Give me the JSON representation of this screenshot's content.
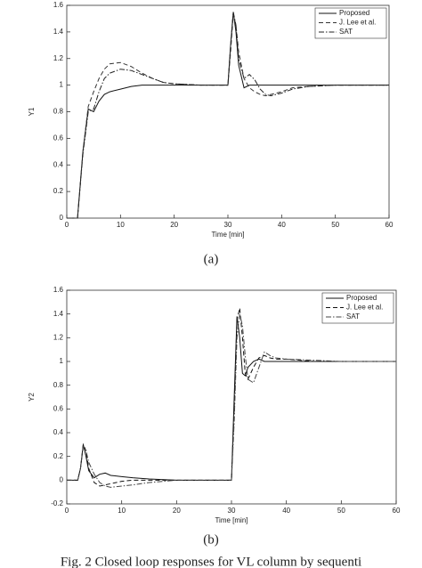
{
  "chart_data": [
    {
      "type": "line",
      "y_label": "Y1",
      "x_label": "Time [min]",
      "xlim": [
        0,
        60
      ],
      "xticks": [
        0,
        10,
        20,
        30,
        40,
        50,
        60
      ],
      "ylim": [
        0,
        1.6
      ],
      "yticks": [
        0,
        0.2,
        0.4,
        0.6,
        0.8,
        1,
        1.2,
        1.4,
        1.6
      ],
      "legend": "upper right",
      "x": [
        0,
        2,
        3,
        4,
        5,
        6,
        7,
        8,
        10,
        12,
        14,
        16,
        18,
        20,
        25,
        30,
        30.5,
        31,
        31.5,
        32,
        33,
        34,
        35,
        36,
        37,
        38,
        40,
        42,
        45,
        50,
        55,
        60
      ],
      "series": [
        {
          "name": "Proposed",
          "color": "#111111",
          "dash": "none",
          "values": [
            0,
            0,
            0.5,
            0.82,
            0.8,
            0.88,
            0.93,
            0.95,
            0.97,
            0.99,
            1.0,
            1.0,
            1.0,
            1.0,
            1.0,
            1.0,
            1.3,
            1.55,
            1.4,
            1.15,
            0.98,
            1.0,
            1.0,
            1.0,
            1.0,
            1.0,
            1.0,
            1.0,
            1.0,
            1.0,
            1.0,
            1.0
          ]
        },
        {
          "name": "J. Lee et al.",
          "color": "#333333",
          "dash": "5,3",
          "values": [
            0,
            0,
            0.5,
            0.84,
            0.95,
            1.05,
            1.12,
            1.16,
            1.17,
            1.14,
            1.09,
            1.05,
            1.02,
            1.01,
            1.0,
            1.0,
            1.25,
            1.53,
            1.45,
            1.25,
            1.05,
            0.98,
            0.95,
            0.93,
            0.92,
            0.93,
            0.95,
            0.98,
            0.99,
            1.0,
            1.0,
            1.0
          ]
        },
        {
          "name": "SAT",
          "color": "#222222",
          "dash": "6,2,1.5,2",
          "values": [
            0,
            0,
            0.48,
            0.8,
            0.82,
            0.95,
            1.05,
            1.09,
            1.12,
            1.11,
            1.08,
            1.05,
            1.02,
            1.01,
            1.0,
            1.0,
            1.3,
            1.55,
            1.45,
            1.2,
            1.05,
            1.08,
            1.04,
            0.97,
            0.93,
            0.92,
            0.94,
            0.97,
            0.99,
            1.0,
            1.0,
            1.0
          ]
        }
      ]
    },
    {
      "type": "line",
      "y_label": "Y2",
      "x_label": "Time [min]",
      "xlim": [
        0,
        60
      ],
      "xticks": [
        0,
        10,
        20,
        30,
        40,
        50,
        60
      ],
      "ylim": [
        -0.2,
        1.6
      ],
      "yticks": [
        -0.2,
        0,
        0.2,
        0.4,
        0.6,
        0.8,
        1,
        1.2,
        1.4,
        1.6
      ],
      "legend": "upper right",
      "x": [
        0,
        2,
        2.5,
        3,
        3.5,
        4,
        5,
        6,
        7,
        8,
        10,
        12,
        15,
        20,
        25,
        30,
        30.5,
        31,
        31.5,
        32,
        32.5,
        33,
        34,
        35,
        36,
        37,
        38,
        40,
        45,
        50,
        55,
        60
      ],
      "series": [
        {
          "name": "Proposed",
          "color": "#111111",
          "dash": "none",
          "values": [
            0,
            0,
            0.1,
            0.3,
            0.2,
            0.08,
            0.02,
            0.05,
            0.06,
            0.04,
            0.03,
            0.02,
            0.01,
            0.0,
            0,
            0,
            0.7,
            1.38,
            1.2,
            0.9,
            0.88,
            0.95,
            1.0,
            1.02,
            1.0,
            1.0,
            1.0,
            1.0,
            1.0,
            1.0,
            1.0,
            1.0
          ]
        },
        {
          "name": "J. Lee et al.",
          "color": "#111111",
          "dash": "5,3",
          "values": [
            0,
            0,
            0.1,
            0.3,
            0.25,
            0.1,
            -0.02,
            -0.05,
            -0.04,
            -0.03,
            -0.01,
            0.0,
            0.0,
            0.0,
            0,
            0,
            0.6,
            1.35,
            1.45,
            1.2,
            0.9,
            0.85,
            0.95,
            1.03,
            1.05,
            1.03,
            1.02,
            1.02,
            1.0,
            1.0,
            1.0,
            1.0
          ]
        },
        {
          "name": "SAT",
          "color": "#444444",
          "dash": "6,2,1.5,2",
          "values": [
            0,
            0,
            0.1,
            0.28,
            0.25,
            0.15,
            0.05,
            -0.02,
            -0.05,
            -0.06,
            -0.05,
            -0.04,
            -0.02,
            0.0,
            0,
            0,
            0.5,
            1.2,
            1.4,
            1.3,
            1.05,
            0.85,
            0.82,
            0.95,
            1.08,
            1.05,
            1.03,
            1.02,
            1.01,
            1.0,
            1.0,
            1.0
          ]
        }
      ]
    }
  ],
  "panel_labels": [
    "(a)",
    "(b)"
  ],
  "caption": "Fig. 2 Closed loop responses for VL column by sequenti"
}
